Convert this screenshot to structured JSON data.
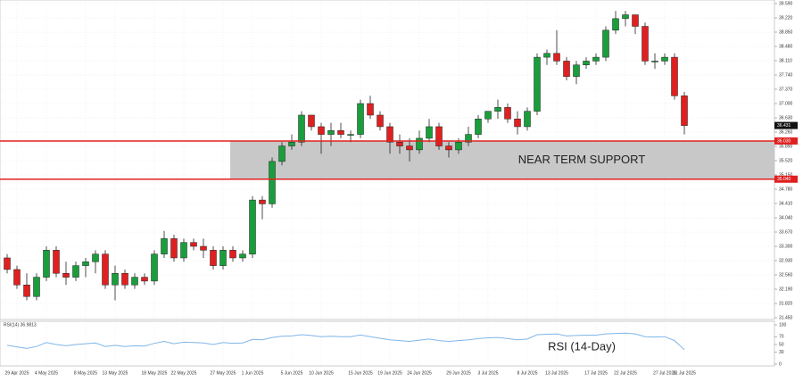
{
  "chart_data": [
    {
      "type": "candlestick",
      "categories": [
        null,
        "29 Apr 2025",
        null,
        null,
        "4 May 2025",
        null,
        null,
        null,
        "8 May 2025",
        null,
        null,
        "13 May 2025",
        null,
        null,
        null,
        "18 May 2025",
        null,
        null,
        "22 May 2025",
        null,
        null,
        null,
        "27 May 2025",
        null,
        null,
        "1 Jun 2025",
        null,
        null,
        null,
        "5 Jun 2025",
        null,
        null,
        "10 Jun 2025",
        null,
        null,
        null,
        "15 Jun 2025",
        null,
        null,
        "19 Jun 2025",
        null,
        null,
        "24 Jun 2025",
        null,
        null,
        null,
        "29 Jun 2025",
        null,
        null,
        "3 Jul 2025",
        null,
        null,
        null,
        "8 Jul 2025",
        null,
        null,
        "13 Jul 2025",
        null,
        null,
        null,
        "17 Jul 2025",
        null,
        null,
        "22 Jul 2025",
        null,
        null,
        null,
        "27 Jul 2025",
        null,
        "31 Jul 2025"
      ],
      "ohlc": [
        [
          33.0,
          33.1,
          32.6,
          32.7
        ],
        [
          32.7,
          32.8,
          32.2,
          32.3
        ],
        [
          32.3,
          32.6,
          31.9,
          32.0
        ],
        [
          32.0,
          32.6,
          31.9,
          32.5
        ],
        [
          32.5,
          33.3,
          32.4,
          33.2
        ],
        [
          33.2,
          33.3,
          32.5,
          32.6
        ],
        [
          32.6,
          32.9,
          32.3,
          32.5
        ],
        [
          32.5,
          32.9,
          32.4,
          32.8
        ],
        [
          32.8,
          33.0,
          32.5,
          32.9
        ],
        [
          32.9,
          33.2,
          32.6,
          33.1
        ],
        [
          33.1,
          33.2,
          32.2,
          32.3
        ],
        [
          32.3,
          32.8,
          31.9,
          32.6
        ],
        [
          32.6,
          32.7,
          32.2,
          32.3
        ],
        [
          32.3,
          32.6,
          32.2,
          32.5
        ],
        [
          32.5,
          32.6,
          32.3,
          32.4
        ],
        [
          32.4,
          33.2,
          32.3,
          33.1
        ],
        [
          33.1,
          33.7,
          33.0,
          33.5
        ],
        [
          33.5,
          33.6,
          32.9,
          33.0
        ],
        [
          33.0,
          33.5,
          32.9,
          33.4
        ],
        [
          33.4,
          33.5,
          33.2,
          33.3
        ],
        [
          33.3,
          33.5,
          33.0,
          33.2
        ],
        [
          33.2,
          33.3,
          32.7,
          32.8
        ],
        [
          32.8,
          33.3,
          32.7,
          33.2
        ],
        [
          33.2,
          33.3,
          32.9,
          33.0
        ],
        [
          33.0,
          33.2,
          32.9,
          33.1
        ],
        [
          33.1,
          34.6,
          33.0,
          34.5
        ],
        [
          34.5,
          34.6,
          34.0,
          34.4
        ],
        [
          34.4,
          35.6,
          34.3,
          35.5
        ],
        [
          35.5,
          36.0,
          35.4,
          35.9
        ],
        [
          35.9,
          36.2,
          35.8,
          36.0
        ],
        [
          36.0,
          36.8,
          35.9,
          36.7
        ],
        [
          36.7,
          36.7,
          36.3,
          36.4
        ],
        [
          36.4,
          36.5,
          35.7,
          36.2
        ],
        [
          36.2,
          36.5,
          35.9,
          36.3
        ],
        [
          36.3,
          36.5,
          36.1,
          36.2
        ],
        [
          36.2,
          36.3,
          36.0,
          36.2
        ],
        [
          36.2,
          37.1,
          36.1,
          37.0
        ],
        [
          37.0,
          37.2,
          36.6,
          36.7
        ],
        [
          36.7,
          36.8,
          36.3,
          36.4
        ],
        [
          36.4,
          36.5,
          35.7,
          36.0
        ],
        [
          36.0,
          36.2,
          35.7,
          35.9
        ],
        [
          35.9,
          36.1,
          35.5,
          35.8
        ],
        [
          35.8,
          36.3,
          35.7,
          36.1
        ],
        [
          36.1,
          36.6,
          36.0,
          36.4
        ],
        [
          36.4,
          36.5,
          35.8,
          35.9
        ],
        [
          35.9,
          36.0,
          35.6,
          35.8
        ],
        [
          35.8,
          36.1,
          35.7,
          36.0
        ],
        [
          36.0,
          36.4,
          35.9,
          36.2
        ],
        [
          36.2,
          36.7,
          36.1,
          36.6
        ],
        [
          36.6,
          36.8,
          36.5,
          36.8
        ],
        [
          36.8,
          37.1,
          36.6,
          36.9
        ],
        [
          36.9,
          37.0,
          36.5,
          36.6
        ],
        [
          36.6,
          36.8,
          36.2,
          36.4
        ],
        [
          36.4,
          36.9,
          36.3,
          36.8
        ],
        [
          36.8,
          38.3,
          36.7,
          38.2
        ],
        [
          38.2,
          38.4,
          38.0,
          38.3
        ],
        [
          38.3,
          38.9,
          38.0,
          38.1
        ],
        [
          38.1,
          38.2,
          37.6,
          37.7
        ],
        [
          37.7,
          38.1,
          37.5,
          38.0
        ],
        [
          38.0,
          38.2,
          37.9,
          38.1
        ],
        [
          38.1,
          38.3,
          38.0,
          38.2
        ],
        [
          38.2,
          39.0,
          38.1,
          38.9
        ],
        [
          38.9,
          39.4,
          38.8,
          39.2
        ],
        [
          39.2,
          39.4,
          39.0,
          39.3
        ],
        [
          39.3,
          39.3,
          38.8,
          39.0
        ],
        [
          39.0,
          39.1,
          38.0,
          38.1
        ],
        [
          38.1,
          38.3,
          37.9,
          38.1
        ],
        [
          38.1,
          38.3,
          38.0,
          38.2
        ],
        [
          38.2,
          38.3,
          37.1,
          37.2
        ],
        [
          37.2,
          37.3,
          36.2,
          36.43
        ]
      ],
      "up_color": "#1a9e3c",
      "down_color": "#e02020",
      "ylim": [
        31.45,
        39.59
      ],
      "yticks": [
        {
          "value": 31.45,
          "label": "31.450"
        },
        {
          "value": 31.82,
          "label": "31.820"
        },
        {
          "value": 32.19,
          "label": "32.190"
        },
        {
          "value": 32.56,
          "label": "32.560"
        },
        {
          "value": 32.93,
          "label": "32.930"
        },
        {
          "value": 33.3,
          "label": "33.300"
        },
        {
          "value": 33.67,
          "label": "33.670"
        },
        {
          "value": 34.04,
          "label": "34.040"
        },
        {
          "value": 34.41,
          "label": "34.410"
        },
        {
          "value": 34.78,
          "label": "34.780"
        },
        {
          "value": 35.15,
          "label": "35.150"
        },
        {
          "value": 35.52,
          "label": "35.520"
        },
        {
          "value": 35.89,
          "label": "35.890"
        },
        {
          "value": 36.26,
          "label": "36.260"
        },
        {
          "value": 36.63,
          "label": "36.630"
        },
        {
          "value": 37.0,
          "label": "37.000"
        },
        {
          "value": 37.37,
          "label": "37.370"
        },
        {
          "value": 37.74,
          "label": "37.740"
        },
        {
          "value": 38.11,
          "label": "38.110"
        },
        {
          "value": 38.48,
          "label": "38.480"
        },
        {
          "value": 38.85,
          "label": "38.850"
        },
        {
          "value": 39.22,
          "label": "39.220"
        },
        {
          "value": 39.59,
          "label": "39.590"
        }
      ],
      "hlines": [
        {
          "value": 36.03,
          "label": "36.030",
          "color": "#e02020"
        },
        {
          "value": 35.04,
          "label": "35.040",
          "color": "#e02020"
        }
      ],
      "zone_label": "NEAR TERM SUPPORT",
      "current_price": {
        "value": 36.431,
        "label": "36.431"
      },
      "grid": true
    },
    {
      "type": "line",
      "label": "RSI(14) 36.9813",
      "annotation": "RSI (14-Day)",
      "color": "#7fb6e8",
      "values": [
        48,
        44,
        40,
        45,
        55,
        50,
        47,
        50,
        52,
        54,
        45,
        48,
        45,
        47,
        46,
        53,
        58,
        52,
        56,
        55,
        54,
        50,
        55,
        53,
        54,
        63,
        62,
        68,
        71,
        72,
        75,
        73,
        70,
        71,
        70,
        70,
        74,
        70,
        66,
        62,
        60,
        58,
        61,
        64,
        60,
        58,
        60,
        62,
        65,
        67,
        68,
        65,
        62,
        64,
        75,
        76,
        77,
        72,
        73,
        74,
        74,
        77,
        78,
        79,
        77,
        70,
        69,
        70,
        60,
        36.98
      ],
      "ylim": [
        0,
        100
      ],
      "yticks": [
        0,
        30,
        50,
        70,
        100
      ]
    }
  ]
}
